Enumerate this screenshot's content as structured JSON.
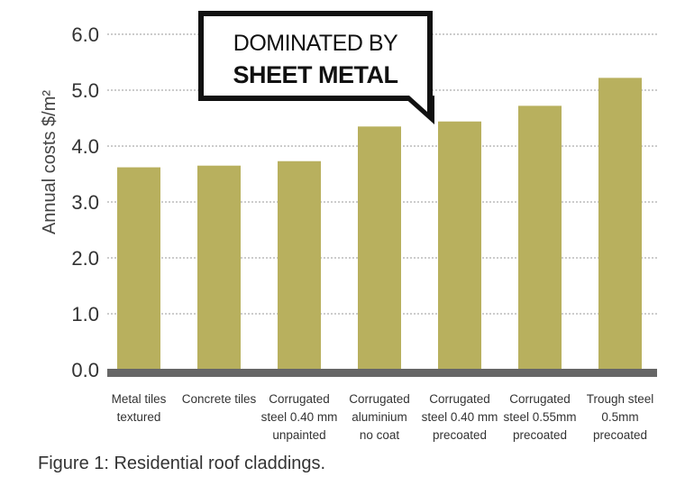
{
  "chart_data": {
    "type": "bar",
    "ylabel": "Annual costs $/m²",
    "ylim": [
      0,
      6
    ],
    "yticks": [
      "0.0",
      "1.0",
      "2.0",
      "3.0",
      "4.0",
      "5.0",
      "6.0"
    ],
    "categories": [
      [
        "Metal tiles",
        "textured"
      ],
      [
        "Concrete tiles"
      ],
      [
        "Corrugated",
        "steel 0.40 mm",
        "unpainted"
      ],
      [
        "Corrugated",
        "aluminium",
        "no coat"
      ],
      [
        "Corrugated",
        "steel 0.40 mm",
        "precoated"
      ],
      [
        "Corrugated",
        "steel 0.55mm",
        "precoated"
      ],
      [
        "Trough steel",
        "0.5mm",
        "precoated"
      ]
    ],
    "values": [
      3.62,
      3.65,
      3.73,
      4.35,
      4.44,
      4.72,
      5.22
    ],
    "grid": true,
    "bar_color": "#b8b05e",
    "baseline_color": "#666666",
    "annotation": {
      "line1": "DOMINATED BY",
      "line2": "SHEET METAL"
    }
  },
  "caption": "Figure 1: Residential roof claddings."
}
